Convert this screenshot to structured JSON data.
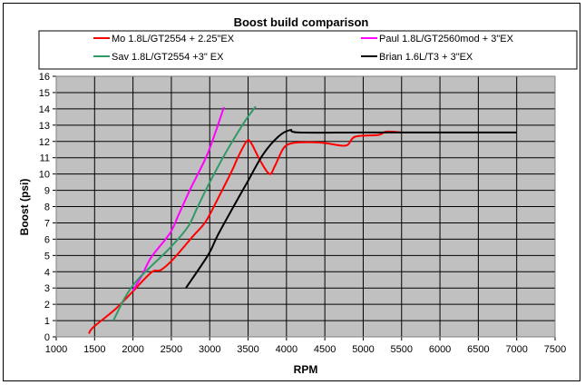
{
  "chart_data": {
    "type": "line",
    "title": "Boost build comparison",
    "xlabel": "RPM",
    "ylabel": "Boost (psi)",
    "xlim": [
      1000,
      7500
    ],
    "ylim": [
      0,
      16
    ],
    "xticks": [
      "1000",
      "1500",
      "2000",
      "2500",
      "3000",
      "3500",
      "4000",
      "4500",
      "5000",
      "5500",
      "6000",
      "6500",
      "7000",
      "7500"
    ],
    "yticks": [
      "0",
      "1",
      "2",
      "3",
      "4",
      "5",
      "6",
      "7",
      "8",
      "9",
      "10",
      "11",
      "12",
      "13",
      "14",
      "15",
      "16"
    ],
    "grid": true,
    "legend_position": "top",
    "series": [
      {
        "name": "Mo 1.8L/GT2554 + 2.25\"EX",
        "color": "#ff0000",
        "x": [
          1425,
          1485,
          1770,
          1980,
          2240,
          2360,
          2510,
          2785,
          2950,
          3140,
          3300,
          3365,
          3480,
          3540,
          3660,
          3780,
          3850,
          3965,
          4085,
          4320,
          4500,
          4700,
          4800,
          4900,
          5200,
          5300,
          5500
        ],
        "y": [
          0.2,
          0.6,
          1.7,
          2.7,
          3.96,
          4.1,
          4.7,
          6.2,
          7.1,
          8.8,
          10.3,
          11.0,
          12.0,
          11.9,
          10.8,
          10.0,
          10.5,
          11.6,
          11.9,
          11.95,
          11.9,
          11.75,
          11.8,
          12.3,
          12.4,
          12.6,
          12.55
        ]
      },
      {
        "name": "Paul 1.8L/GT2560mod + 3\"EX",
        "color": "#ff00ff",
        "x": [
          2000,
          2120,
          2240,
          2480,
          2595,
          2750,
          2950,
          3070,
          3185
        ],
        "y": [
          2.85,
          3.8,
          4.9,
          6.35,
          7.5,
          9.1,
          11.0,
          12.5,
          14.1
        ]
      },
      {
        "name": "Sav 1.8L/GT2554 +3\" EX",
        "color": "#339966",
        "x": [
          1745,
          1900,
          2040,
          2240,
          2480,
          2715,
          2830,
          2985,
          3220,
          3460,
          3600
        ],
        "y": [
          1.0,
          2.45,
          3.4,
          4.35,
          5.45,
          6.75,
          7.85,
          9.35,
          11.4,
          13.25,
          14.15
        ]
      },
      {
        "name": "Brian 1.6L/T3 + 3\"EX",
        "color": "#000000",
        "x": [
          2690,
          2985,
          3100,
          3340,
          3490,
          3695,
          3895,
          4050,
          4160,
          5000,
          6000,
          7000
        ],
        "y": [
          3.0,
          5.07,
          6.2,
          8.25,
          9.5,
          11.2,
          12.3,
          12.7,
          12.55,
          12.55,
          12.55,
          12.55
        ]
      }
    ]
  }
}
